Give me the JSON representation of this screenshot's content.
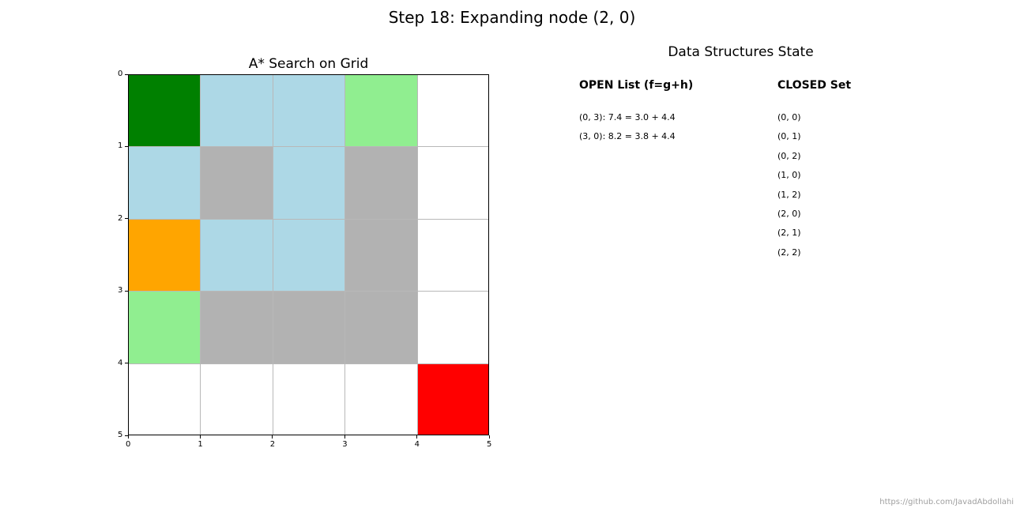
{
  "figure": {
    "title": "Step 18: Expanding node (2, 0)",
    "grid_title": "A* Search on Grid",
    "panel_title": "Data Structures State",
    "footer": "https://github.com/JavadAbdollahi"
  },
  "grid": {
    "rows": 5,
    "cols": 5,
    "x_ticks": [
      "0",
      "1",
      "2",
      "3",
      "4",
      "5"
    ],
    "y_ticks": [
      "0",
      "1",
      "2",
      "3",
      "4",
      "5"
    ],
    "colors": {
      "start": "#008000",
      "goal": "#ff0000",
      "current": "#ffa500",
      "open": "#90ee90",
      "closed": "#add8e6",
      "wall": "#b2b2b2",
      "empty": "#ffffff",
      "gridline": "#b8b8b8"
    },
    "cells": [
      [
        "start",
        "closed",
        "closed",
        "open",
        "empty"
      ],
      [
        "closed",
        "wall",
        "closed",
        "wall",
        "empty"
      ],
      [
        "current",
        "closed",
        "closed",
        "wall",
        "empty"
      ],
      [
        "open",
        "wall",
        "wall",
        "wall",
        "empty"
      ],
      [
        "empty",
        "empty",
        "empty",
        "empty",
        "goal"
      ]
    ]
  },
  "open_list": {
    "header": "OPEN List (f=g+h)",
    "items": [
      "(0, 3): 7.4 = 3.0 + 4.4",
      "(3, 0): 8.2 = 3.8 + 4.4"
    ]
  },
  "closed_set": {
    "header": "CLOSED Set",
    "items": [
      "(0, 0)",
      "(0, 1)",
      "(0, 2)",
      "(1, 0)",
      "(1, 2)",
      "(2, 0)",
      "(2, 1)",
      "(2, 2)"
    ]
  }
}
